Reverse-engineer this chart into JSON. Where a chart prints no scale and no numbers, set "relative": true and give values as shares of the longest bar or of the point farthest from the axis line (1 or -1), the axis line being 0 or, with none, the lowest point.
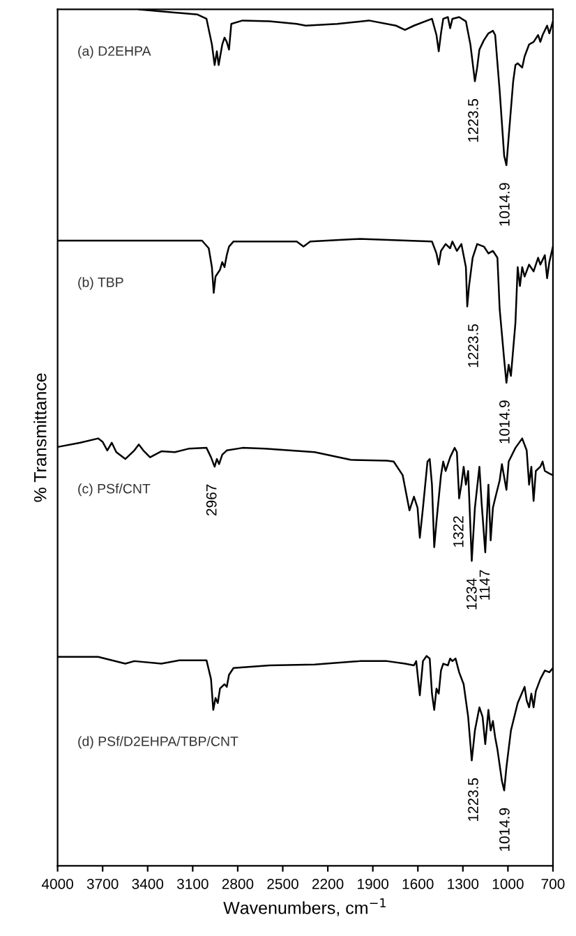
{
  "chart_data": {
    "type": "line",
    "relative": true,
    "xlabel": "Wavenumbers, cm$^{−1}$",
    "ylabel": "% Transmittance",
    "xlim": [
      4000,
      700
    ],
    "xticks": [
      4000,
      3700,
      3400,
      3100,
      2800,
      2500,
      2200,
      1900,
      1600,
      1300,
      1000,
      700
    ],
    "grid": false,
    "legend": false,
    "marker": "none",
    "line_style": "solid",
    "tick_labels": "x",
    "series": [
      {
        "name": "(a) D2EHPA",
        "color": "#000000",
        "x": [
          3459,
          3068,
          3008,
          2972,
          2954,
          2939,
          2927,
          2903,
          2888,
          2873,
          2858,
          2843,
          2768,
          2588,
          2407,
          2347,
          2137,
          1926,
          1746,
          1686,
          1626,
          1506,
          1476,
          1461,
          1446,
          1431,
          1400,
          1385,
          1370,
          1325,
          1280,
          1250,
          1220,
          1205,
          1190,
          1160,
          1130,
          1100,
          1085,
          1055,
          1025,
          1010,
          995,
          965,
          950,
          935,
          905,
          889,
          859,
          829,
          799,
          784,
          769,
          739,
          724,
          700
        ],
        "values": [
          1.0,
          0.994,
          0.989,
          0.959,
          0.935,
          0.951,
          0.935,
          0.959,
          0.967,
          0.962,
          0.953,
          0.983,
          0.987,
          0.986,
          0.983,
          0.981,
          0.983,
          0.987,
          0.981,
          0.976,
          0.981,
          0.989,
          0.97,
          0.951,
          0.972,
          0.989,
          0.991,
          0.978,
          0.989,
          0.991,
          0.986,
          0.959,
          0.916,
          0.932,
          0.953,
          0.964,
          0.972,
          0.975,
          0.97,
          0.905,
          0.829,
          0.818,
          0.851,
          0.916,
          0.935,
          0.937,
          0.932,
          0.945,
          0.959,
          0.962,
          0.97,
          0.962,
          0.97,
          0.981,
          0.972,
          0.986
        ]
      },
      {
        "name": "(b) TBP",
        "color": "#000000",
        "x": [
          4000,
          3609,
          3038,
          2993,
          2972,
          2960,
          2948,
          2918,
          2903,
          2888,
          2873,
          2858,
          2828,
          2407,
          2362,
          2317,
          1986,
          1506,
          1476,
          1461,
          1446,
          1415,
          1385,
          1370,
          1340,
          1310,
          1280,
          1271,
          1259,
          1235,
          1205,
          1160,
          1130,
          1100,
          1070,
          1055,
          1025,
          1010,
          995,
          980,
          950,
          935,
          920,
          905,
          889,
          859,
          829,
          799,
          784,
          754,
          739,
          724,
          700
        ],
        "values": [
          0.73,
          0.73,
          0.73,
          0.721,
          0.699,
          0.669,
          0.688,
          0.696,
          0.705,
          0.699,
          0.713,
          0.723,
          0.729,
          0.729,
          0.723,
          0.729,
          0.732,
          0.729,
          0.715,
          0.702,
          0.718,
          0.726,
          0.721,
          0.729,
          0.718,
          0.726,
          0.699,
          0.653,
          0.677,
          0.71,
          0.726,
          0.723,
          0.715,
          0.718,
          0.71,
          0.65,
          0.591,
          0.564,
          0.585,
          0.572,
          0.634,
          0.699,
          0.677,
          0.699,
          0.688,
          0.702,
          0.694,
          0.71,
          0.702,
          0.713,
          0.686,
          0.705,
          0.723
        ]
      },
      {
        "name": "(c) PSf/CNT",
        "color": "#000000",
        "x": [
          4000,
          3850,
          3730,
          3700,
          3669,
          3639,
          3609,
          3549,
          3489,
          3459,
          3429,
          3384,
          3309,
          3219,
          3128,
          3008,
          2978,
          2954,
          2939,
          2924,
          2903,
          2873,
          2768,
          2618,
          2287,
          2047,
          1806,
          1761,
          1701,
          1656,
          1626,
          1602,
          1587,
          1566,
          1536,
          1521,
          1506,
          1491,
          1476,
          1446,
          1431,
          1415,
          1385,
          1355,
          1340,
          1325,
          1310,
          1295,
          1280,
          1265,
          1241,
          1220,
          1190,
          1175,
          1151,
          1130,
          1115,
          1100,
          1085,
          1055,
          1040,
          1010,
          995,
          950,
          905,
          875,
          859,
          844,
          829,
          814,
          784,
          769,
          754,
          724,
          700
        ],
        "values": [
          0.489,
          0.494,
          0.499,
          0.495,
          0.485,
          0.494,
          0.483,
          0.475,
          0.485,
          0.492,
          0.485,
          0.477,
          0.484,
          0.483,
          0.487,
          0.488,
          0.477,
          0.466,
          0.475,
          0.469,
          0.48,
          0.485,
          0.488,
          0.487,
          0.483,
          0.474,
          0.473,
          0.472,
          0.456,
          0.415,
          0.431,
          0.418,
          0.383,
          0.418,
          0.472,
          0.475,
          0.445,
          0.372,
          0.402,
          0.456,
          0.472,
          0.461,
          0.477,
          0.488,
          0.483,
          0.429,
          0.445,
          0.466,
          0.445,
          0.461,
          0.356,
          0.418,
          0.466,
          0.423,
          0.366,
          0.445,
          0.38,
          0.418,
          0.429,
          0.45,
          0.469,
          0.439,
          0.472,
          0.488,
          0.499,
          0.485,
          0.445,
          0.466,
          0.426,
          0.461,
          0.466,
          0.472,
          0.461,
          0.458,
          0.456
        ]
      },
      {
        "name": "(d) PSf/D2EHPA/TBP/CNT",
        "color": "#000000",
        "x": [
          4000,
          3730,
          3549,
          3489,
          3309,
          3188,
          3008,
          2978,
          2963,
          2948,
          2933,
          2918,
          2888,
          2873,
          2858,
          2828,
          2588,
          2287,
          1986,
          1806,
          1686,
          1626,
          1611,
          1587,
          1566,
          1542,
          1521,
          1506,
          1491,
          1476,
          1461,
          1446,
          1431,
          1400,
          1385,
          1370,
          1349,
          1325,
          1295,
          1265,
          1241,
          1220,
          1190,
          1169,
          1151,
          1130,
          1115,
          1100,
          1085,
          1070,
          1040,
          1025,
          1010,
          980,
          935,
          889,
          875,
          859,
          844,
          829,
          814,
          784,
          754,
          724,
          700
        ],
        "values": [
          0.244,
          0.244,
          0.236,
          0.239,
          0.236,
          0.24,
          0.24,
          0.218,
          0.182,
          0.196,
          0.19,
          0.207,
          0.212,
          0.209,
          0.223,
          0.231,
          0.234,
          0.235,
          0.239,
          0.239,
          0.236,
          0.234,
          0.239,
          0.199,
          0.239,
          0.245,
          0.242,
          0.201,
          0.182,
          0.207,
          0.201,
          0.228,
          0.236,
          0.234,
          0.242,
          0.239,
          0.242,
          0.226,
          0.212,
          0.174,
          0.123,
          0.158,
          0.185,
          0.174,
          0.142,
          0.182,
          0.158,
          0.169,
          0.15,
          0.136,
          0.099,
          0.088,
          0.115,
          0.158,
          0.19,
          0.209,
          0.193,
          0.185,
          0.201,
          0.185,
          0.204,
          0.218,
          0.228,
          0.226,
          0.231
        ]
      }
    ],
    "annotations": [
      {
        "text": "1223.5",
        "x": 1223.5,
        "y": 0.916
      },
      {
        "text": "1014.9",
        "x": 1014.9,
        "y": 0.818
      },
      {
        "text": "1223.5",
        "x": 1223.5,
        "y": 0.653
      },
      {
        "text": "1014.9",
        "x": 1014.9,
        "y": 0.564
      },
      {
        "text": "2967",
        "x": 2967,
        "y": 0.466
      },
      {
        "text": "1322",
        "x": 1322,
        "y": 0.429
      },
      {
        "text": "1234",
        "x": 1234,
        "y": 0.356
      },
      {
        "text": "1147",
        "x": 1147,
        "y": 0.366
      },
      {
        "text": "1223.5",
        "x": 1223.5,
        "y": 0.123
      },
      {
        "text": "1014.9",
        "x": 1014.9,
        "y": 0.088
      }
    ]
  }
}
